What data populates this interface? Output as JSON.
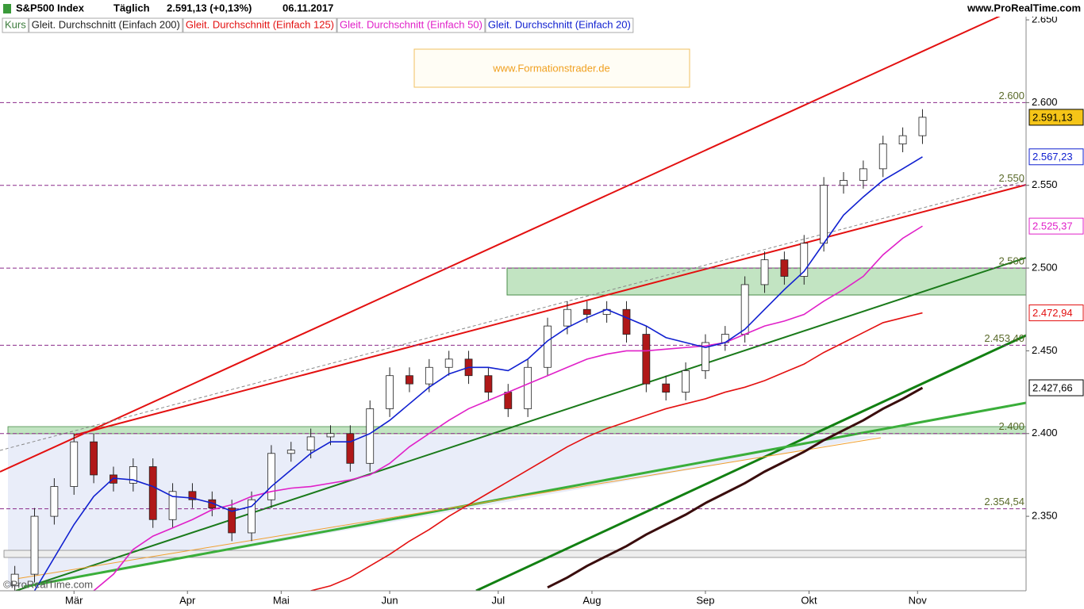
{
  "chart_data": {
    "type": "candlestick",
    "title": "S&P500 Index",
    "period": "Täglich",
    "quote": "2.591,13 (+0,13%)",
    "date": "06.11.2017",
    "source": "www.ProRealTime.com",
    "watermark": "www.Formationstrader.de",
    "copyright": "©ProRealTime.com",
    "price_name": "Kurs",
    "x": [
      -12,
      -8,
      -4,
      0,
      4,
      8,
      12,
      16,
      20,
      24,
      28,
      32,
      36,
      40,
      44,
      48,
      52,
      56,
      60,
      64,
      68,
      72,
      76,
      80,
      84,
      88,
      92,
      96,
      100,
      104,
      108,
      112,
      116,
      120,
      124,
      128,
      132,
      136,
      140,
      144,
      148,
      152,
      156,
      160,
      164,
      168,
      172
    ],
    "open": [
      2308,
      2315,
      2350,
      2368,
      2395,
      2375,
      2370,
      2380,
      2348,
      2365,
      2360,
      2355,
      2340,
      2360,
      2388,
      2390,
      2398,
      2400,
      2382,
      2415,
      2435,
      2430,
      2440,
      2445,
      2435,
      2425,
      2415,
      2440,
      2465,
      2475,
      2472,
      2475,
      2460,
      2430,
      2425,
      2438,
      2455,
      2460,
      2490,
      2505,
      2495,
      2515,
      2550,
      2553,
      2560,
      2575,
      2580
    ],
    "high": [
      2320,
      2355,
      2373,
      2400,
      2400,
      2380,
      2385,
      2385,
      2370,
      2370,
      2365,
      2360,
      2365,
      2393,
      2395,
      2403,
      2405,
      2405,
      2420,
      2440,
      2440,
      2445,
      2450,
      2450,
      2440,
      2430,
      2445,
      2470,
      2480,
      2480,
      2480,
      2480,
      2465,
      2435,
      2443,
      2460,
      2465,
      2495,
      2510,
      2510,
      2520,
      2555,
      2558,
      2565,
      2580,
      2585,
      2596
    ],
    "low": [
      2305,
      2310,
      2345,
      2363,
      2370,
      2365,
      2365,
      2343,
      2343,
      2355,
      2350,
      2335,
      2335,
      2355,
      2383,
      2385,
      2393,
      2377,
      2377,
      2410,
      2425,
      2425,
      2435,
      2430,
      2420,
      2410,
      2410,
      2435,
      2460,
      2467,
      2467,
      2455,
      2425,
      2420,
      2420,
      2433,
      2450,
      2455,
      2485,
      2490,
      2490,
      2510,
      2545,
      2548,
      2555,
      2570,
      2575
    ],
    "close": [
      2315,
      2350,
      2368,
      2395,
      2375,
      2370,
      2380,
      2348,
      2365,
      2360,
      2355,
      2340,
      2360,
      2388,
      2390,
      2398,
      2400,
      2382,
      2415,
      2435,
      2430,
      2440,
      2445,
      2435,
      2425,
      2415,
      2440,
      2465,
      2475,
      2472,
      2475,
      2460,
      2430,
      2425,
      2438,
      2455,
      2460,
      2490,
      2505,
      2495,
      2515,
      2550,
      2553,
      2560,
      2575,
      2580,
      2591.13
    ],
    "series": [
      {
        "name": "Gleit. Durchschnitt (Einfach 200)",
        "color": "#3a0d0d",
        "width": 3,
        "values": [
          null,
          null,
          null,
          null,
          null,
          null,
          null,
          null,
          null,
          null,
          null,
          null,
          null,
          null,
          null,
          null,
          null,
          null,
          null,
          null,
          null,
          null,
          null,
          null,
          null,
          null,
          null,
          2307,
          2313,
          2320,
          2326,
          2332,
          2339,
          2345,
          2351,
          2358,
          2364,
          2370,
          2377,
          2383,
          2389,
          2396,
          2402,
          2408,
          2415,
          2421,
          2427.66
        ]
      },
      {
        "name": "Gleit. Durchschnitt (Einfach 125)",
        "color": "#e31010",
        "width": 1.6,
        "values": [
          null,
          null,
          null,
          null,
          null,
          null,
          null,
          null,
          null,
          null,
          null,
          null,
          null,
          null,
          null,
          2305,
          2308,
          2313,
          2320,
          2327,
          2335,
          2342,
          2350,
          2357,
          2364,
          2371,
          2378,
          2385,
          2392,
          2398,
          2403,
          2407,
          2411,
          2415,
          2418,
          2421,
          2425,
          2428,
          2432,
          2437,
          2442,
          2449,
          2455,
          2461,
          2467,
          2470,
          2472.94
        ]
      },
      {
        "name": "Gleit. Durchschnitt (Einfach 50)",
        "color": "#e020c8",
        "width": 1.6,
        "values": [
          null,
          null,
          null,
          null,
          2305,
          2315,
          2330,
          2338,
          2343,
          2348,
          2354,
          2357,
          2362,
          2365,
          2367,
          2368,
          2370,
          2372,
          2375,
          2382,
          2392,
          2400,
          2408,
          2415,
          2420,
          2425,
          2430,
          2435,
          2440,
          2445,
          2448,
          2450,
          2450,
          2451,
          2452,
          2453,
          2455,
          2460,
          2465,
          2468,
          2472,
          2480,
          2487,
          2495,
          2508,
          2518,
          2525.37
        ]
      },
      {
        "name": "Gleit. Durchschnitt (Einfach 20)",
        "color": "#1020d0",
        "width": 1.6,
        "values": [
          null,
          2305,
          2325,
          2345,
          2362,
          2373,
          2372,
          2368,
          2362,
          2361,
          2358,
          2353,
          2356,
          2368,
          2378,
          2388,
          2395,
          2395,
          2400,
          2408,
          2418,
          2428,
          2436,
          2440,
          2440,
          2438,
          2445,
          2456,
          2464,
          2470,
          2475,
          2470,
          2465,
          2458,
          2455,
          2452,
          2455,
          2463,
          2475,
          2487,
          2498,
          2515,
          2532,
          2543,
          2553,
          2560,
          2567.23
        ]
      }
    ],
    "price_labels": [
      {
        "value": 2591.13,
        "label": "2.591,13",
        "color": "#000000",
        "background": "#f5c518"
      },
      {
        "value": 2567.23,
        "label": "2.567,23",
        "color": "#1020d0",
        "background": "#ffffff"
      },
      {
        "value": 2525.37,
        "label": "2.525,37",
        "color": "#e020c8",
        "background": "#ffffff"
      },
      {
        "value": 2472.94,
        "label": "2.472,94",
        "color": "#e31010",
        "background": "#ffffff"
      },
      {
        "value": 2427.66,
        "label": "2.427,66",
        "color": "#000000",
        "background": "#ffffff"
      }
    ],
    "levels": [
      {
        "value": 2600,
        "label": "2.600"
      },
      {
        "value": 2550,
        "label": "2.550"
      },
      {
        "value": 2500,
        "label": "2.500"
      },
      {
        "value": 2453.4,
        "label": "2.453,40"
      },
      {
        "value": 2400,
        "label": "2.400"
      },
      {
        "value": 2354.54,
        "label": "2.354,54"
      }
    ],
    "up_color": "#ffffff",
    "down_color": "#b01818",
    "xlim": [
      -15,
      193
    ],
    "xticks": [
      {
        "value": 0,
        "label": "Mär"
      },
      {
        "value": 23,
        "label": "Apr"
      },
      {
        "value": 42,
        "label": "Mai"
      },
      {
        "value": 64,
        "label": "Jun"
      },
      {
        "value": 86,
        "label": "Jul"
      },
      {
        "value": 105,
        "label": "Aug"
      },
      {
        "value": 128,
        "label": "Sep"
      },
      {
        "value": 149,
        "label": "Okt"
      },
      {
        "value": 171,
        "label": "Nov"
      }
    ],
    "ylim": [
      2305,
      2662
    ],
    "yticks": [
      {
        "value": 2650,
        "label": "2.650"
      },
      {
        "value": 2600,
        "label": "2.600"
      },
      {
        "value": 2550,
        "label": "2.550"
      },
      {
        "value": 2500,
        "label": "2.500"
      },
      {
        "value": 2450,
        "label": "2.450"
      },
      {
        "value": 2400,
        "label": "2.400"
      },
      {
        "value": 2350,
        "label": "2.350"
      }
    ]
  }
}
